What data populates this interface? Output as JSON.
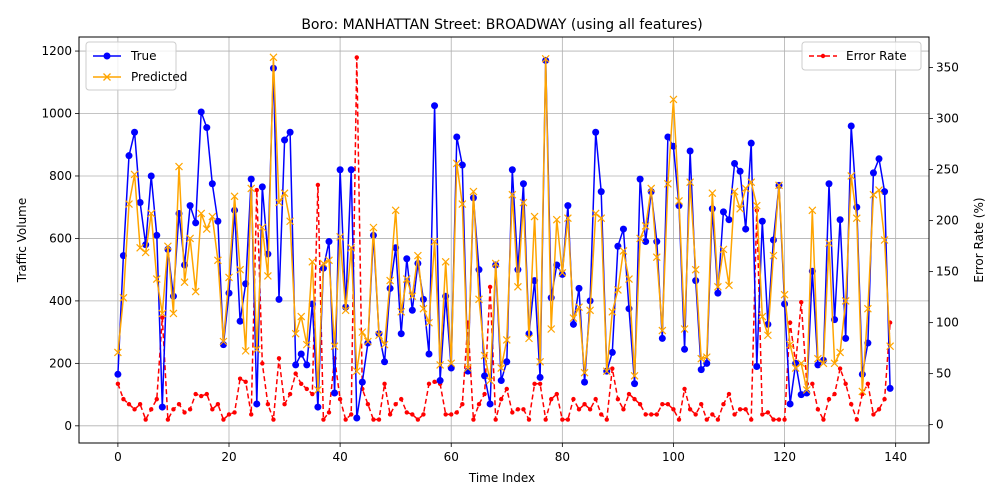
{
  "chart_data": {
    "type": "line",
    "title": "Boro: MANHATTAN Street: BROADWAY (using all features)",
    "xlabel": "Time Index",
    "ylabel": "Traffic Volume",
    "y2label": "Error Rate (%)",
    "xlim": [
      -7,
      146
    ],
    "ylim": [
      -55,
      1245
    ],
    "y2lim": [
      -18,
      380
    ],
    "xticks": [
      0,
      20,
      40,
      60,
      80,
      100,
      120,
      140
    ],
    "yticks": [
      0,
      200,
      400,
      600,
      800,
      1000,
      1200
    ],
    "y2ticks": [
      0,
      50,
      100,
      150,
      200,
      250,
      300,
      350
    ],
    "grid": true,
    "x": [
      0,
      1,
      2,
      3,
      4,
      5,
      6,
      7,
      8,
      9,
      10,
      11,
      12,
      13,
      14,
      15,
      16,
      17,
      18,
      19,
      20,
      21,
      22,
      23,
      24,
      25,
      26,
      27,
      28,
      29,
      30,
      31,
      32,
      33,
      34,
      35,
      36,
      37,
      38,
      39,
      40,
      41,
      42,
      43,
      44,
      45,
      46,
      47,
      48,
      49,
      50,
      51,
      52,
      53,
      54,
      55,
      56,
      57,
      58,
      59,
      60,
      61,
      62,
      63,
      64,
      65,
      66,
      67,
      68,
      69,
      70,
      71,
      72,
      73,
      74,
      75,
      76,
      77,
      78,
      79,
      80,
      81,
      82,
      83,
      84,
      85,
      86,
      87,
      88,
      89,
      90,
      91,
      92,
      93,
      94,
      95,
      96,
      97,
      98,
      99,
      100,
      101,
      102,
      103,
      104,
      105,
      106,
      107,
      108,
      109,
      110,
      111,
      112,
      113,
      114,
      115,
      116,
      117,
      118,
      119,
      120,
      121,
      122,
      123,
      124,
      125,
      126,
      127,
      128,
      129,
      130,
      131,
      132,
      133,
      134,
      135,
      136,
      137,
      138,
      139
    ],
    "series": [
      {
        "name": "True",
        "axis": "left",
        "color": "#0000ff",
        "marker": "circle",
        "linestyle": "solid",
        "values": [
          165,
          545,
          865,
          940,
          715,
          580,
          800,
          610,
          60,
          565,
          415,
          680,
          515,
          705,
          650,
          1005,
          955,
          775,
          655,
          260,
          425,
          690,
          335,
          455,
          790,
          70,
          765,
          550,
          1145,
          405,
          915,
          940,
          195,
          230,
          195,
          390,
          60,
          505,
          590,
          105,
          820,
          380,
          820,
          25,
          140,
          265,
          610,
          295,
          205,
          440,
          570,
          295,
          535,
          370,
          520,
          405,
          230,
          1025,
          145,
          415,
          185,
          925,
          835,
          175,
          730,
          500,
          160,
          70,
          515,
          145,
          205,
          820,
          500,
          775,
          295,
          465,
          155,
          1170,
          410,
          515,
          485,
          705,
          325,
          440,
          140,
          400,
          940,
          750,
          175,
          235,
          575,
          630,
          375,
          135,
          790,
          590,
          750,
          590,
          280,
          925,
          895,
          705,
          245,
          880,
          465,
          180,
          200,
          695,
          425,
          685,
          660,
          840,
          815,
          630,
          905,
          190,
          655,
          325,
          595,
          770,
          390,
          70,
          200,
          100,
          105,
          495,
          195,
          210,
          775,
          340,
          660,
          280,
          960,
          700,
          165,
          265,
          810,
          855,
          750,
          120
        ]
      },
      {
        "name": "Predicted",
        "axis": "left",
        "color": "#ffa500",
        "marker": "x",
        "linestyle": "solid",
        "values": [
          235,
          410,
          710,
          805,
          570,
          555,
          680,
          470,
          360,
          575,
          360,
          830,
          460,
          600,
          430,
          680,
          630,
          670,
          530,
          270,
          475,
          735,
          500,
          240,
          760,
          245,
          635,
          480,
          1180,
          715,
          745,
          655,
          295,
          350,
          260,
          525,
          115,
          520,
          530,
          255,
          605,
          370,
          570,
          175,
          300,
          270,
          635,
          290,
          260,
          465,
          690,
          365,
          470,
          415,
          545,
          375,
          330,
          590,
          195,
          525,
          200,
          840,
          710,
          185,
          750,
          405,
          225,
          145,
          520,
          185,
          275,
          740,
          445,
          715,
          280,
          670,
          205,
          1175,
          310,
          660,
          490,
          665,
          345,
          380,
          170,
          370,
          680,
          665,
          175,
          365,
          435,
          560,
          470,
          160,
          600,
          640,
          760,
          540,
          305,
          775,
          1045,
          720,
          310,
          780,
          500,
          215,
          220,
          745,
          445,
          565,
          450,
          750,
          695,
          760,
          780,
          705,
          350,
          290,
          545,
          770,
          420,
          260,
          185,
          200,
          115,
          690,
          215,
          200,
          585,
          200,
          235,
          400,
          800,
          665,
          110,
          375,
          740,
          755,
          595,
          255
        ]
      },
      {
        "name": "Error Rate",
        "axis": "right",
        "color": "#ff0000",
        "marker": "dot",
        "linestyle": "dashed",
        "values": [
          40,
          25,
          20,
          15,
          20,
          5,
          15,
          25,
          105,
          5,
          15,
          20,
          12,
          15,
          30,
          28,
          30,
          15,
          20,
          5,
          10,
          12,
          45,
          42,
          10,
          230,
          60,
          20,
          5,
          65,
          20,
          30,
          50,
          40,
          35,
          30,
          235,
          5,
          12,
          65,
          25,
          5,
          10,
          360,
          35,
          20,
          5,
          5,
          40,
          10,
          20,
          25,
          12,
          10,
          5,
          10,
          40,
          42,
          40,
          10,
          10,
          12,
          20,
          100,
          5,
          20,
          30,
          135,
          5,
          25,
          35,
          12,
          15,
          15,
          5,
          40,
          40,
          5,
          25,
          30,
          5,
          5,
          25,
          15,
          20,
          15,
          25,
          10,
          5,
          55,
          25,
          15,
          30,
          25,
          20,
          10,
          10,
          10,
          20,
          20,
          15,
          5,
          35,
          15,
          10,
          20,
          5,
          10,
          5,
          20,
          30,
          10,
          15,
          15,
          5,
          210,
          10,
          12,
          5,
          5,
          5,
          100,
          60,
          120,
          40,
          40,
          15,
          5,
          25,
          30,
          55,
          40,
          20,
          5,
          30,
          40,
          10,
          15,
          25,
          100
        ]
      }
    ]
  }
}
